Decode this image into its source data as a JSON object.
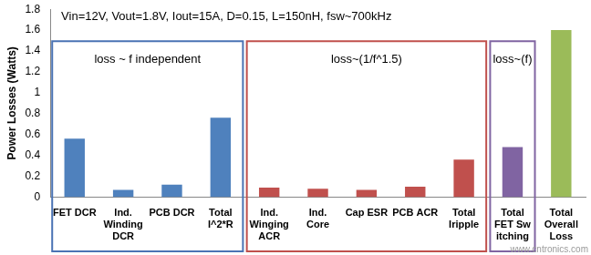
{
  "chart_data": {
    "type": "bar",
    "y_label": "Power Losses (Watts)",
    "categories": [
      "FET DCR",
      "Ind.\nWinding\nDCR",
      "PCB DCR",
      "Total\nI^2*R",
      "Ind.\nWinging\nACR",
      "Ind.\nCore",
      "Cap ESR",
      "PCB ACR",
      "Total\nIripple",
      "Total\nFET Sw\nitching",
      "Total\nOverall\nLoss"
    ],
    "values": [
      0.56,
      0.07,
      0.12,
      0.76,
      0.09,
      0.08,
      0.07,
      0.1,
      0.36,
      0.48,
      1.6
    ],
    "colors": [
      "#4f81bd",
      "#4f81bd",
      "#4f81bd",
      "#4f81bd",
      "#c0504d",
      "#c0504d",
      "#c0504d",
      "#c0504d",
      "#c0504d",
      "#8064a2",
      "#9bbb59"
    ],
    "ylim": [
      0,
      1.8
    ],
    "yticks": [
      0,
      0.2,
      0.4,
      0.6,
      0.8,
      1,
      1.2,
      1.4,
      1.6,
      1.8
    ],
    "grid": false,
    "annotations": [
      "Vin=12V, Vout=1.8V, Iout=15A, D=0.15, L=150nH, fsw~700kHz",
      "www.cntronics.com"
    ],
    "groups": [
      {
        "label": "loss ~ f independent",
        "color": "#4a73b4",
        "categories": [
          "FET DCR",
          "Ind.\nWinding\nDCR",
          "PCB DCR",
          "Total\nI^2*R"
        ]
      },
      {
        "label": "loss~(1/f^1.5)",
        "color": "#c0504d",
        "categories": [
          "Ind.\nWinging\nACR",
          "Ind.\nCore",
          "Cap ESR",
          "PCB ACR",
          "Total\nIripple"
        ]
      },
      {
        "label": "loss~(f)",
        "color": "#8064a2",
        "categories": [
          "Total\nFET Sw\nitching"
        ]
      }
    ]
  }
}
